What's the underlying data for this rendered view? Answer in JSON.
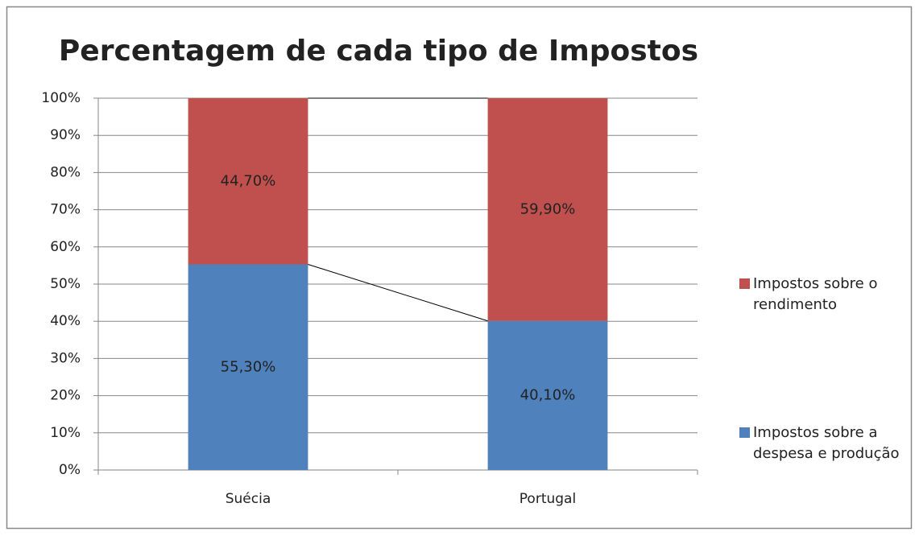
{
  "chart_data": {
    "type": "stacked_bar_100",
    "title": "Percentagem de cada tipo de Impostos",
    "categories": [
      "Suécia",
      "Portugal"
    ],
    "series": [
      {
        "name": "Impostos sobre a despesa e produção",
        "color": "#4f81bd",
        "values": [
          55.3,
          40.1
        ],
        "value_labels": [
          "55,30%",
          "40,10%"
        ]
      },
      {
        "name": "Impostos sobre o rendimento",
        "color": "#c0504d",
        "values": [
          44.7,
          59.9
        ],
        "value_labels": [
          "44,70%",
          "59,90%"
        ]
      }
    ],
    "ylim": [
      0,
      100
    ],
    "yticks": [
      {
        "value": 0,
        "label": "0%"
      },
      {
        "value": 10,
        "label": "10%"
      },
      {
        "value": 20,
        "label": "20%"
      },
      {
        "value": 30,
        "label": "30%"
      },
      {
        "value": 40,
        "label": "40%"
      },
      {
        "value": 50,
        "label": "50%"
      },
      {
        "value": 60,
        "label": "60%"
      },
      {
        "value": 70,
        "label": "70%"
      },
      {
        "value": 80,
        "label": "80%"
      },
      {
        "value": 90,
        "label": "90%"
      },
      {
        "value": 100,
        "label": "100%"
      }
    ],
    "grid": true,
    "series_lines": true,
    "legend": "right"
  }
}
